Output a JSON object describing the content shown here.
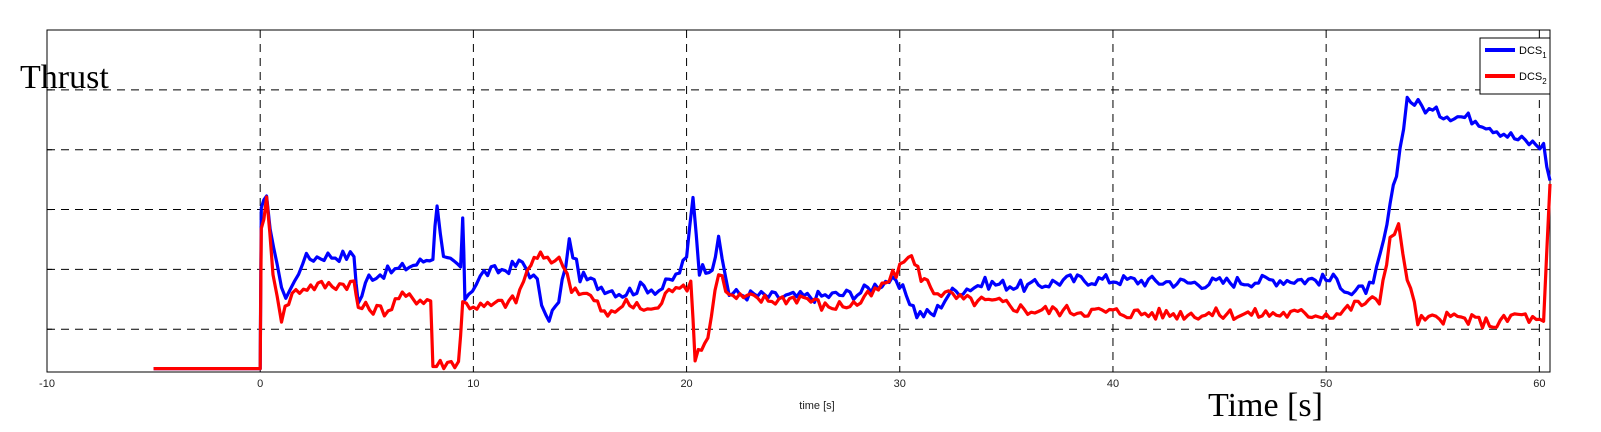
{
  "chart_data": {
    "type": "line",
    "title": "",
    "overlay_ylabel": "Thrust",
    "overlay_xlabel": "Time [s]",
    "xlabel": "time [s]",
    "ylabel": "",
    "xlim": [
      -10,
      60.5
    ],
    "ylim": [
      0,
      1.0
    ],
    "xticks": [
      -10,
      0,
      10,
      20,
      30,
      40,
      50,
      60
    ],
    "xtick_labels": [
      "-10",
      "0",
      "10",
      "20",
      "30",
      "40",
      "50",
      "60"
    ],
    "grid": true,
    "legend_position": "top-right",
    "series": [
      {
        "name": "DCS",
        "subscript": "1",
        "color": "#0000ff",
        "points": [
          [
            -5,
            0.01
          ],
          [
            0,
            0.01
          ],
          [
            0.05,
            0.48
          ],
          [
            0.3,
            0.5
          ],
          [
            0.8,
            0.3
          ],
          [
            1.2,
            0.22
          ],
          [
            1.6,
            0.26
          ],
          [
            2,
            0.33
          ],
          [
            3,
            0.34
          ],
          [
            4.4,
            0.34
          ],
          [
            4.6,
            0.2
          ],
          [
            5.1,
            0.28
          ],
          [
            6.5,
            0.3
          ],
          [
            7.5,
            0.32
          ],
          [
            8.1,
            0.34
          ],
          [
            8.3,
            0.5
          ],
          [
            8.6,
            0.33
          ],
          [
            9.4,
            0.3
          ],
          [
            9.5,
            0.45
          ],
          [
            9.6,
            0.22
          ],
          [
            10.5,
            0.29
          ],
          [
            11.5,
            0.3
          ],
          [
            12.3,
            0.32
          ],
          [
            13,
            0.26
          ],
          [
            13.4,
            0.15
          ],
          [
            14,
            0.2
          ],
          [
            14.5,
            0.38
          ],
          [
            15,
            0.28
          ],
          [
            16,
            0.25
          ],
          [
            17,
            0.23
          ],
          [
            18,
            0.25
          ],
          [
            18.7,
            0.24
          ],
          [
            19.5,
            0.28
          ],
          [
            20,
            0.33
          ],
          [
            20.3,
            0.52
          ],
          [
            20.6,
            0.3
          ],
          [
            21.2,
            0.31
          ],
          [
            21.5,
            0.38
          ],
          [
            22,
            0.23
          ],
          [
            24,
            0.22
          ],
          [
            26,
            0.22
          ],
          [
            28,
            0.23
          ],
          [
            29.5,
            0.27
          ],
          [
            30.3,
            0.23
          ],
          [
            30.8,
            0.17
          ],
          [
            31.6,
            0.17
          ],
          [
            32.3,
            0.23
          ],
          [
            34,
            0.26
          ],
          [
            36,
            0.25
          ],
          [
            38,
            0.27
          ],
          [
            40,
            0.27
          ],
          [
            44,
            0.26
          ],
          [
            48,
            0.27
          ],
          [
            50.5,
            0.27
          ],
          [
            51.2,
            0.23
          ],
          [
            52.2,
            0.25
          ],
          [
            52.7,
            0.38
          ],
          [
            53.3,
            0.58
          ],
          [
            53.8,
            0.8
          ],
          [
            55,
            0.76
          ],
          [
            57,
            0.74
          ],
          [
            59,
            0.68
          ],
          [
            60.2,
            0.66
          ],
          [
            60.5,
            0.56
          ]
        ]
      },
      {
        "name": "DCS",
        "subscript": "2",
        "color": "#ff0000",
        "points": [
          [
            -5,
            0.01
          ],
          [
            0,
            0.01
          ],
          [
            0.05,
            0.42
          ],
          [
            0.3,
            0.5
          ],
          [
            0.6,
            0.3
          ],
          [
            1.0,
            0.16
          ],
          [
            1.5,
            0.23
          ],
          [
            2.2,
            0.25
          ],
          [
            4.4,
            0.26
          ],
          [
            4.6,
            0.19
          ],
          [
            6,
            0.18
          ],
          [
            6.5,
            0.22
          ],
          [
            8,
            0.21
          ],
          [
            8.1,
            0.02
          ],
          [
            9.3,
            0.03
          ],
          [
            9.5,
            0.2
          ],
          [
            10.5,
            0.19
          ],
          [
            12,
            0.21
          ],
          [
            12.7,
            0.32
          ],
          [
            13.3,
            0.34
          ],
          [
            14.2,
            0.32
          ],
          [
            14.6,
            0.25
          ],
          [
            15.5,
            0.22
          ],
          [
            16.3,
            0.16
          ],
          [
            17,
            0.2
          ],
          [
            18.5,
            0.18
          ],
          [
            19.5,
            0.26
          ],
          [
            20.2,
            0.25
          ],
          [
            20.4,
            0.05
          ],
          [
            21,
            0.1
          ],
          [
            21.5,
            0.3
          ],
          [
            22,
            0.22
          ],
          [
            24,
            0.21
          ],
          [
            25.5,
            0.22
          ],
          [
            26.5,
            0.19
          ],
          [
            28,
            0.2
          ],
          [
            29,
            0.24
          ],
          [
            30,
            0.3
          ],
          [
            30.4,
            0.35
          ],
          [
            31,
            0.28
          ],
          [
            31.6,
            0.24
          ],
          [
            33,
            0.21
          ],
          [
            35,
            0.2
          ],
          [
            36,
            0.18
          ],
          [
            38,
            0.18
          ],
          [
            42,
            0.17
          ],
          [
            46,
            0.17
          ],
          [
            50.5,
            0.17
          ],
          [
            51.5,
            0.2
          ],
          [
            52.5,
            0.21
          ],
          [
            53,
            0.39
          ],
          [
            53.4,
            0.42
          ],
          [
            53.8,
            0.28
          ],
          [
            54.3,
            0.15
          ],
          [
            56,
            0.16
          ],
          [
            58,
            0.14
          ],
          [
            59,
            0.17
          ],
          [
            60.2,
            0.14
          ],
          [
            60.5,
            0.55
          ]
        ]
      }
    ]
  }
}
